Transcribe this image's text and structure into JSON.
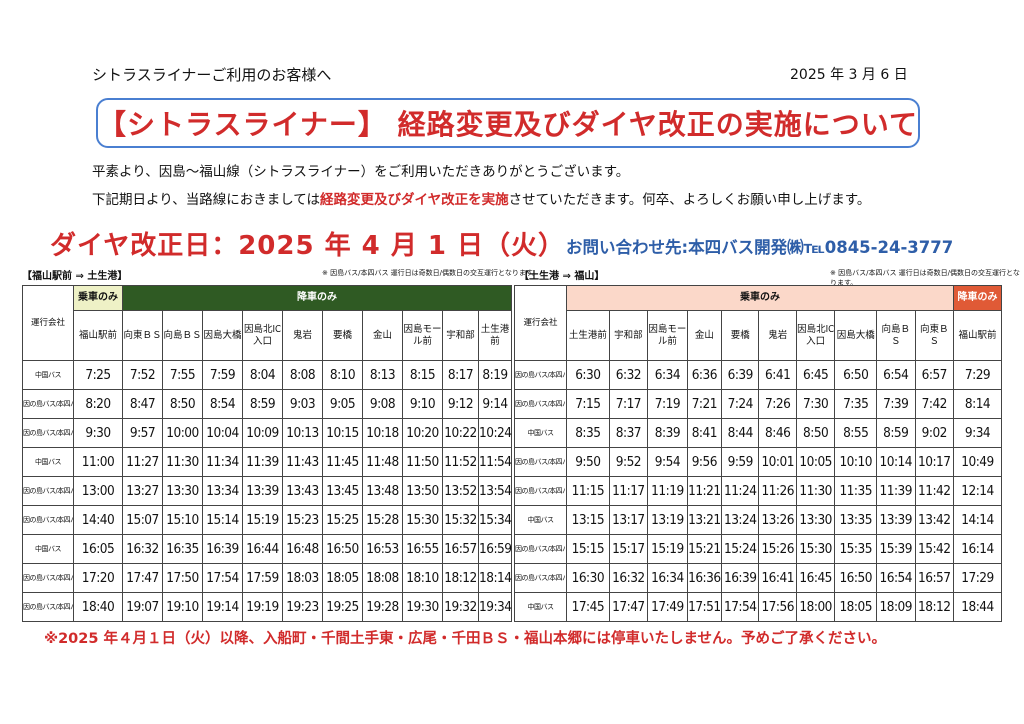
{
  "header": {
    "addressee": "シトラスライナーご利用のお客様へ",
    "date": "2025 年 3 月 6 日",
    "title": "【シトラスライナー】 経路変更及びダイヤ改正の実施について"
  },
  "intro": {
    "line1": "平素より、因島～福山線（シトラスライナー）をご利用いただきありがとうございます。",
    "line2_a": "下記期日より、当路線におきましては",
    "line2_red": "経路変更及びダイヤ改正を実施",
    "line2_b": "させていただきます。何卒、よろしくお願い申し上げます。"
  },
  "revision_date": "ダイヤ改正日：2025 年 4 月 1 日（火）",
  "contact": "お問い合わせ先:本四バス開発㈱℡0845-24-3777",
  "left": {
    "route": "【福山駅前 ⇒ 土生港】",
    "note": "※ 因島バス/本四バス 運行日は奇数日/偶数日の交互運行となります。",
    "operator_header": "運行会社",
    "board_label": "乗車のみ",
    "alight_label": "降車のみ",
    "stops": [
      "福山駅前",
      "向東ＢＳ",
      "向島ＢＳ",
      "因島大橋",
      "因島北IC入口",
      "鬼岩",
      "要橋",
      "金山",
      "因島モール前",
      "宇和部",
      "土生港前"
    ],
    "rows": [
      {
        "op": "中国バス",
        "times": [
          "7:25",
          "7:52",
          "7:55",
          "7:59",
          "8:04",
          "8:08",
          "8:10",
          "8:13",
          "8:15",
          "8:17",
          "8:19"
        ]
      },
      {
        "op": "因の島バス/本四バス",
        "times": [
          "8:20",
          "8:47",
          "8:50",
          "8:54",
          "8:59",
          "9:03",
          "9:05",
          "9:08",
          "9:10",
          "9:12",
          "9:14"
        ]
      },
      {
        "op": "因の島バス/本四バス",
        "times": [
          "9:30",
          "9:57",
          "10:00",
          "10:04",
          "10:09",
          "10:13",
          "10:15",
          "10:18",
          "10:20",
          "10:22",
          "10:24"
        ]
      },
      {
        "op": "中国バス",
        "times": [
          "11:00",
          "11:27",
          "11:30",
          "11:34",
          "11:39",
          "11:43",
          "11:45",
          "11:48",
          "11:50",
          "11:52",
          "11:54"
        ]
      },
      {
        "op": "因の島バス/本四バス",
        "times": [
          "13:00",
          "13:27",
          "13:30",
          "13:34",
          "13:39",
          "13:43",
          "13:45",
          "13:48",
          "13:50",
          "13:52",
          "13:54"
        ]
      },
      {
        "op": "因の島バス/本四バス",
        "times": [
          "14:40",
          "15:07",
          "15:10",
          "15:14",
          "15:19",
          "15:23",
          "15:25",
          "15:28",
          "15:30",
          "15:32",
          "15:34"
        ]
      },
      {
        "op": "中国バス",
        "times": [
          "16:05",
          "16:32",
          "16:35",
          "16:39",
          "16:44",
          "16:48",
          "16:50",
          "16:53",
          "16:55",
          "16:57",
          "16:59"
        ]
      },
      {
        "op": "因の島バス/本四バス",
        "times": [
          "17:20",
          "17:47",
          "17:50",
          "17:54",
          "17:59",
          "18:03",
          "18:05",
          "18:08",
          "18:10",
          "18:12",
          "18:14"
        ]
      },
      {
        "op": "因の島バス/本四バス",
        "times": [
          "18:40",
          "19:07",
          "19:10",
          "19:14",
          "19:19",
          "19:23",
          "19:25",
          "19:28",
          "19:30",
          "19:32",
          "19:34"
        ]
      }
    ]
  },
  "right": {
    "route": "【土生港 ⇒ 福山】",
    "note": "※ 因島バス/本四バス 運行日は奇数日/偶数日の交互運行となります。",
    "operator_header": "運行会社",
    "board_label": "乗車のみ",
    "alight_label": "降車のみ",
    "stops": [
      "土生港前",
      "宇和部",
      "因島モール前",
      "金山",
      "要橋",
      "鬼岩",
      "因島北IC入口",
      "因島大橋",
      "向島ＢＳ",
      "向東ＢＳ",
      "福山駅前"
    ],
    "rows": [
      {
        "op": "因の島バス/本四バス",
        "times": [
          "6:30",
          "6:32",
          "6:34",
          "6:36",
          "6:39",
          "6:41",
          "6:45",
          "6:50",
          "6:54",
          "6:57",
          "7:29"
        ]
      },
      {
        "op": "因の島バス/本四バス",
        "times": [
          "7:15",
          "7:17",
          "7:19",
          "7:21",
          "7:24",
          "7:26",
          "7:30",
          "7:35",
          "7:39",
          "7:42",
          "8:14"
        ]
      },
      {
        "op": "中国バス",
        "times": [
          "8:35",
          "8:37",
          "8:39",
          "8:41",
          "8:44",
          "8:46",
          "8:50",
          "8:55",
          "8:59",
          "9:02",
          "9:34"
        ]
      },
      {
        "op": "因の島バス/本四バス",
        "times": [
          "9:50",
          "9:52",
          "9:54",
          "9:56",
          "9:59",
          "10:01",
          "10:05",
          "10:10",
          "10:14",
          "10:17",
          "10:49"
        ]
      },
      {
        "op": "因の島バス/本四バス",
        "times": [
          "11:15",
          "11:17",
          "11:19",
          "11:21",
          "11:24",
          "11:26",
          "11:30",
          "11:35",
          "11:39",
          "11:42",
          "12:14"
        ]
      },
      {
        "op": "中国バス",
        "times": [
          "13:15",
          "13:17",
          "13:19",
          "13:21",
          "13:24",
          "13:26",
          "13:30",
          "13:35",
          "13:39",
          "13:42",
          "14:14"
        ]
      },
      {
        "op": "因の島バス/本四バス",
        "times": [
          "15:15",
          "15:17",
          "15:19",
          "15:21",
          "15:24",
          "15:26",
          "15:30",
          "15:35",
          "15:39",
          "15:42",
          "16:14"
        ]
      },
      {
        "op": "因の島バス/本四バス",
        "times": [
          "16:30",
          "16:32",
          "16:34",
          "16:36",
          "16:39",
          "16:41",
          "16:45",
          "16:50",
          "16:54",
          "16:57",
          "17:29"
        ]
      },
      {
        "op": "中国バス",
        "times": [
          "17:45",
          "17:47",
          "17:49",
          "17:51",
          "17:54",
          "17:56",
          "18:00",
          "18:05",
          "18:09",
          "18:12",
          "18:44"
        ]
      }
    ]
  },
  "footnote": "※2025 年４月１日（火）以降、入船町・千間土手東・広尾・千田ＢＳ・福山本郷には停車いたしません。予めご了承ください。",
  "colors": {
    "accent_red": "#d12b2b",
    "title_border": "#4a7fd1",
    "contact_blue": "#2e5ea8",
    "board_green_bg": "#eef1c6",
    "alight_green_bg": "#2f5a23",
    "board_peach_bg": "#fbd8c9",
    "alight_orange_bg": "#e05a36"
  }
}
